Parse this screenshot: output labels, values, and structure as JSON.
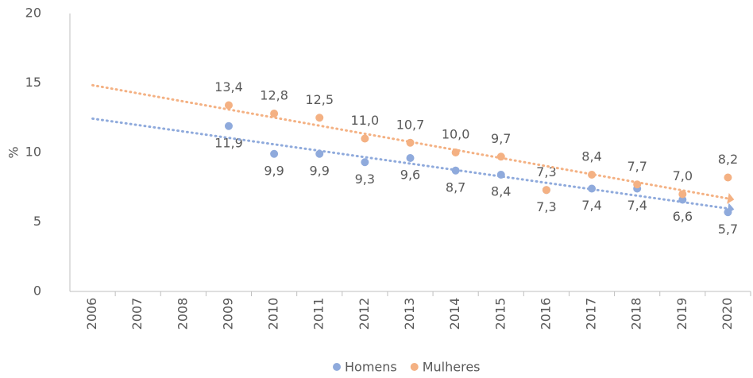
{
  "chart_data": {
    "type": "scatter",
    "y_label": "%",
    "categories": [
      "2006",
      "2007",
      "2008",
      "2009",
      "2010",
      "2011",
      "2012",
      "2013",
      "2014",
      "2015",
      "2016",
      "2017",
      "2018",
      "2019",
      "2020"
    ],
    "series": [
      {
        "name": "Homens",
        "color": "#8faadc",
        "label_position": "below",
        "values": [
          null,
          null,
          null,
          11.9,
          9.9,
          9.9,
          9.3,
          9.6,
          8.7,
          8.4,
          7.3,
          7.4,
          7.4,
          6.6,
          5.7
        ],
        "value_labels": [
          null,
          null,
          null,
          "11,9",
          "9,9",
          "9,9",
          "9,3",
          "9,6",
          "8,7",
          "8,4",
          "7,3",
          "7,4",
          "7,4",
          "6,6",
          "5,7"
        ]
      },
      {
        "name": "Mulheres",
        "color": "#f4b183",
        "label_position": "above",
        "values": [
          null,
          null,
          null,
          13.4,
          12.8,
          12.5,
          11.0,
          10.7,
          10.0,
          9.7,
          7.3,
          8.4,
          7.7,
          7.0,
          8.2
        ],
        "value_labels": [
          null,
          null,
          null,
          "13,4",
          "12,8",
          "12,5",
          "11,0",
          "10,7",
          "10,0",
          "9,7",
          "7,3",
          "8,4",
          "7,7",
          "7,0",
          "8,2"
        ]
      }
    ],
    "trendline": true,
    "ylim": [
      0,
      20
    ],
    "yticks": [
      0,
      5,
      10,
      15,
      20
    ],
    "grid": false,
    "legend": "bottom"
  }
}
